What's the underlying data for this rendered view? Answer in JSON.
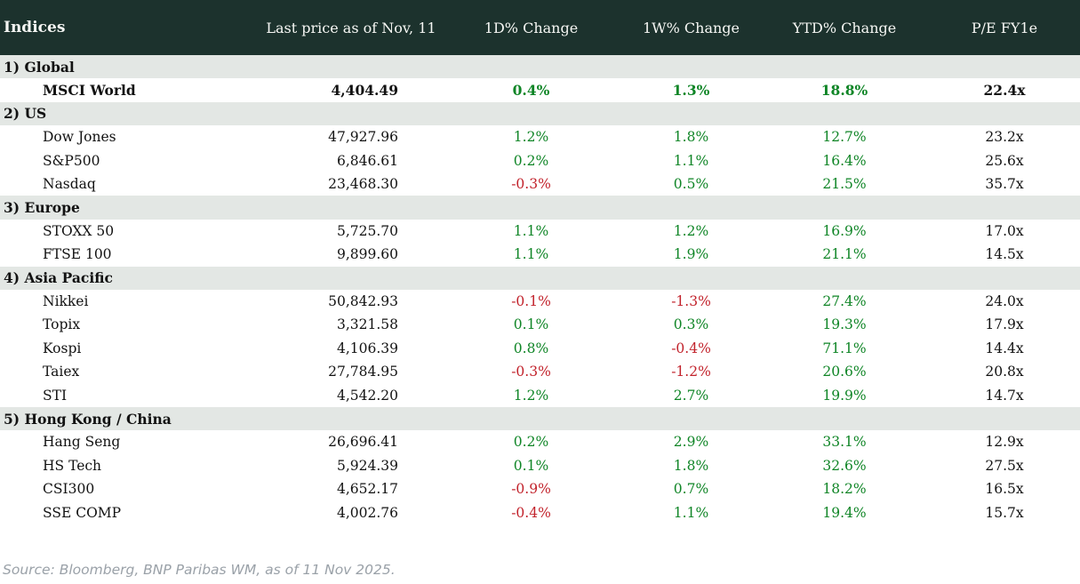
{
  "table": {
    "title": "Indices",
    "columns": {
      "price": "Last price as of Nov, 11",
      "d1": "1D% Change",
      "w1": "1W% Change",
      "ytd": "YTD% Change",
      "pe": "P/E FY1e"
    },
    "sections": [
      {
        "label": "1) Global",
        "rows": [
          {
            "name": "MSCI World",
            "price": "4,404.49",
            "d1": "0.4%",
            "w1": "1.3%",
            "ytd": "18.8%",
            "pe": "22.4x",
            "bold": true
          }
        ]
      },
      {
        "label": "2) US",
        "rows": [
          {
            "name": "Dow Jones",
            "price": "47,927.96",
            "d1": "1.2%",
            "w1": "1.8%",
            "ytd": "12.7%",
            "pe": "23.2x"
          },
          {
            "name": "S&P500",
            "price": "6,846.61",
            "d1": "0.2%",
            "w1": "1.1%",
            "ytd": "16.4%",
            "pe": "25.6x"
          },
          {
            "name": "Nasdaq",
            "price": "23,468.30",
            "d1": "-0.3%",
            "w1": "0.5%",
            "ytd": "21.5%",
            "pe": "35.7x"
          }
        ]
      },
      {
        "label": "3) Europe",
        "rows": [
          {
            "name": "STOXX 50",
            "price": "5,725.70",
            "d1": "1.1%",
            "w1": "1.2%",
            "ytd": "16.9%",
            "pe": "17.0x"
          },
          {
            "name": "FTSE 100",
            "price": "9,899.60",
            "d1": "1.1%",
            "w1": "1.9%",
            "ytd": "21.1%",
            "pe": "14.5x"
          }
        ]
      },
      {
        "label": "4) Asia Pacific",
        "rows": [
          {
            "name": "Nikkei",
            "price": "50,842.93",
            "d1": "-0.1%",
            "w1": "-1.3%",
            "ytd": "27.4%",
            "pe": "24.0x"
          },
          {
            "name": "Topix",
            "price": "3,321.58",
            "d1": "0.1%",
            "w1": "0.3%",
            "ytd": "19.3%",
            "pe": "17.9x"
          },
          {
            "name": "Kospi",
            "price": "4,106.39",
            "d1": "0.8%",
            "w1": "-0.4%",
            "ytd": "71.1%",
            "pe": "14.4x"
          },
          {
            "name": "Taiex",
            "price": "27,784.95",
            "d1": "-0.3%",
            "w1": "-1.2%",
            "ytd": "20.6%",
            "pe": "20.8x"
          },
          {
            "name": "STI",
            "price": "4,542.20",
            "d1": "1.2%",
            "w1": "2.7%",
            "ytd": "19.9%",
            "pe": "14.7x"
          }
        ]
      },
      {
        "label": "5) Hong Kong / China",
        "rows": [
          {
            "name": "Hang Seng",
            "price": "26,696.41",
            "d1": "0.2%",
            "w1": "2.9%",
            "ytd": "33.1%",
            "pe": "12.9x"
          },
          {
            "name": "HS Tech",
            "price": "5,924.39",
            "d1": "0.1%",
            "w1": "1.8%",
            "ytd": "32.6%",
            "pe": "27.5x"
          },
          {
            "name": "CSI300",
            "price": "4,652.17",
            "d1": "-0.9%",
            "w1": "0.7%",
            "ytd": "18.2%",
            "pe": "16.5x"
          },
          {
            "name": "SSE COMP",
            "price": "4,002.76",
            "d1": "-0.4%",
            "w1": "1.1%",
            "ytd": "19.4%",
            "pe": "15.7x"
          }
        ]
      }
    ]
  },
  "footer": {
    "source": "Source: Bloomberg, BNP Paribas WM, as of 11 Nov 2025."
  },
  "colors": {
    "header_bg": "#1c322d",
    "header_text": "#f5f6f3",
    "section_bg": "#e3e7e4",
    "positive": "#0f8526",
    "negative": "#c2232c",
    "footer_text": "#9aa1a8"
  },
  "chart_data": {
    "type": "table",
    "title": "Indices",
    "columns": [
      "Indices",
      "Last price as of Nov, 11",
      "1D% Change",
      "1W% Change",
      "YTD% Change",
      "P/E FY1e"
    ],
    "rows": [
      {
        "group": "1) Global",
        "index": "MSCI World",
        "last_price": 4404.49,
        "d1_pct": 0.4,
        "w1_pct": 1.3,
        "ytd_pct": 18.8,
        "pe_fy1e": 22.4
      },
      {
        "group": "2) US",
        "index": "Dow Jones",
        "last_price": 47927.96,
        "d1_pct": 1.2,
        "w1_pct": 1.8,
        "ytd_pct": 12.7,
        "pe_fy1e": 23.2
      },
      {
        "group": "2) US",
        "index": "S&P500",
        "last_price": 6846.61,
        "d1_pct": 0.2,
        "w1_pct": 1.1,
        "ytd_pct": 16.4,
        "pe_fy1e": 25.6
      },
      {
        "group": "2) US",
        "index": "Nasdaq",
        "last_price": 23468.3,
        "d1_pct": -0.3,
        "w1_pct": 0.5,
        "ytd_pct": 21.5,
        "pe_fy1e": 35.7
      },
      {
        "group": "3) Europe",
        "index": "STOXX 50",
        "last_price": 5725.7,
        "d1_pct": 1.1,
        "w1_pct": 1.2,
        "ytd_pct": 16.9,
        "pe_fy1e": 17.0
      },
      {
        "group": "3) Europe",
        "index": "FTSE 100",
        "last_price": 9899.6,
        "d1_pct": 1.1,
        "w1_pct": 1.9,
        "ytd_pct": 21.1,
        "pe_fy1e": 14.5
      },
      {
        "group": "4) Asia Pacific",
        "index": "Nikkei",
        "last_price": 50842.93,
        "d1_pct": -0.1,
        "w1_pct": -1.3,
        "ytd_pct": 27.4,
        "pe_fy1e": 24.0
      },
      {
        "group": "4) Asia Pacific",
        "index": "Topix",
        "last_price": 3321.58,
        "d1_pct": 0.1,
        "w1_pct": 0.3,
        "ytd_pct": 19.3,
        "pe_fy1e": 17.9
      },
      {
        "group": "4) Asia Pacific",
        "index": "Kospi",
        "last_price": 4106.39,
        "d1_pct": 0.8,
        "w1_pct": -0.4,
        "ytd_pct": 71.1,
        "pe_fy1e": 14.4
      },
      {
        "group": "4) Asia Pacific",
        "index": "Taiex",
        "last_price": 27784.95,
        "d1_pct": -0.3,
        "w1_pct": -1.2,
        "ytd_pct": 20.6,
        "pe_fy1e": 20.8
      },
      {
        "group": "4) Asia Pacific",
        "index": "STI",
        "last_price": 4542.2,
        "d1_pct": 1.2,
        "w1_pct": 2.7,
        "ytd_pct": 19.9,
        "pe_fy1e": 14.7
      },
      {
        "group": "5) Hong Kong / China",
        "index": "Hang Seng",
        "last_price": 26696.41,
        "d1_pct": 0.2,
        "w1_pct": 2.9,
        "ytd_pct": 33.1,
        "pe_fy1e": 12.9
      },
      {
        "group": "5) Hong Kong / China",
        "index": "HS Tech",
        "last_price": 5924.39,
        "d1_pct": 0.1,
        "w1_pct": 1.8,
        "ytd_pct": 32.6,
        "pe_fy1e": 27.5
      },
      {
        "group": "5) Hong Kong / China",
        "index": "CSI300",
        "last_price": 4652.17,
        "d1_pct": -0.9,
        "w1_pct": 0.7,
        "ytd_pct": 18.2,
        "pe_fy1e": 16.5
      },
      {
        "group": "5) Hong Kong / China",
        "index": "SSE COMP",
        "last_price": 4002.76,
        "d1_pct": -0.4,
        "w1_pct": 1.1,
        "ytd_pct": 19.4,
        "pe_fy1e": 15.7
      }
    ],
    "notes": "Green = positive change, red = negative change. Source note at bottom.",
    "source": "Source: Bloomberg, BNP Paribas WM, as of 11 Nov 2025."
  }
}
